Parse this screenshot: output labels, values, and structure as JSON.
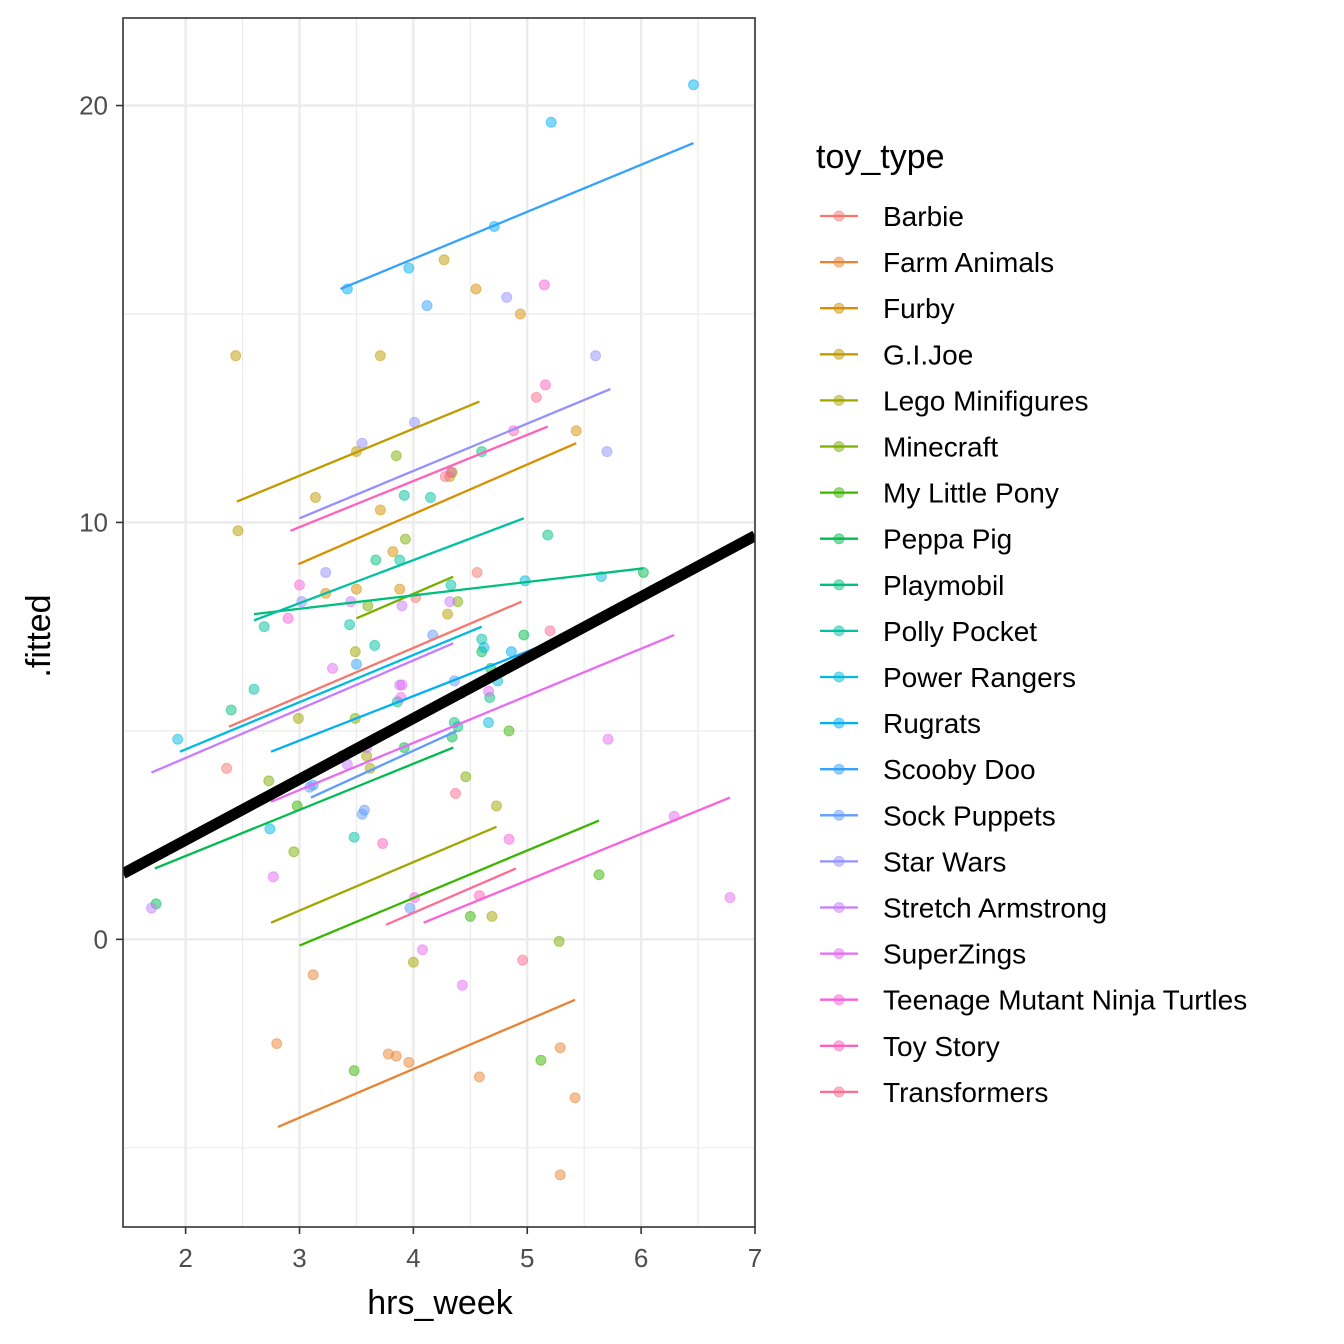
{
  "chart_data": {
    "type": "scatter",
    "xlabel": "hrs_week",
    "ylabel": ".fitted",
    "xlim": [
      1.45,
      7.0
    ],
    "ylim": [
      -6.9,
      22.1
    ],
    "x_ticks": [
      2,
      3,
      4,
      5,
      6,
      7
    ],
    "y_ticks": [
      0,
      10,
      20
    ],
    "grid": true,
    "legend": {
      "title": "toy_type",
      "position": "right"
    },
    "overall_fit": {
      "color": "#000000",
      "intercept": -0.54,
      "slope": 1.46
    },
    "series": [
      {
        "name": "Barbie",
        "color": "#F8766D",
        "line": [
          [
            2.38,
            5.1
          ],
          [
            4.95,
            8.1
          ]
        ],
        "points": [
          [
            2.36,
            4.1
          ],
          [
            3.37,
            4.4
          ],
          [
            4.02,
            8.2
          ],
          [
            4.56,
            8.8
          ]
        ]
      },
      {
        "name": "Farm Animals",
        "color": "#EA8331",
        "line": [
          [
            2.81,
            -4.5
          ],
          [
            5.42,
            -1.45
          ]
        ],
        "points": [
          [
            2.8,
            -2.5
          ],
          [
            3.12,
            -0.85
          ],
          [
            3.78,
            -2.75
          ],
          [
            3.85,
            -2.8
          ],
          [
            3.96,
            -2.95
          ],
          [
            4.58,
            -3.3
          ],
          [
            5.29,
            -2.6
          ],
          [
            5.29,
            -5.65
          ],
          [
            5.42,
            -3.8
          ]
        ]
      },
      {
        "name": "Furby",
        "color": "#D89000",
        "line": [
          [
            2.99,
            9.0
          ],
          [
            5.43,
            11.9
          ]
        ],
        "points": [
          [
            3.23,
            8.3
          ],
          [
            3.5,
            8.4
          ],
          [
            3.71,
            10.3
          ],
          [
            3.82,
            9.3
          ],
          [
            3.88,
            8.4
          ],
          [
            4.55,
            15.6
          ],
          [
            4.94,
            15.0
          ],
          [
            5.43,
            12.2
          ]
        ]
      },
      {
        "name": "G.I.Joe",
        "color": "#C09B00",
        "line": [
          [
            2.45,
            10.5
          ],
          [
            4.58,
            12.9
          ]
        ],
        "points": [
          [
            2.44,
            14.0
          ],
          [
            2.46,
            9.8
          ],
          [
            3.14,
            10.6
          ],
          [
            3.5,
            11.7
          ],
          [
            3.71,
            14.0
          ],
          [
            4.27,
            16.3
          ],
          [
            4.3,
            7.8
          ],
          [
            4.32,
            11.1
          ]
        ]
      },
      {
        "name": "Lego Minifigures",
        "color": "#A3A500",
        "line": [
          [
            2.75,
            0.4
          ],
          [
            4.73,
            2.7
          ]
        ],
        "points": [
          [
            2.99,
            5.3
          ],
          [
            3.49,
            6.9
          ],
          [
            3.59,
            4.4
          ],
          [
            3.62,
            4.1
          ],
          [
            4.0,
            -0.55
          ],
          [
            4.69,
            0.55
          ],
          [
            4.73,
            3.2
          ]
        ]
      },
      {
        "name": "Minecraft",
        "color": "#7CAE00",
        "line": [
          [
            3.5,
            7.7
          ],
          [
            4.35,
            8.7
          ]
        ],
        "points": [
          [
            2.73,
            3.8
          ],
          [
            2.95,
            2.1
          ],
          [
            3.49,
            5.3
          ],
          [
            3.6,
            8.0
          ],
          [
            3.85,
            11.6
          ],
          [
            3.93,
            9.6
          ],
          [
            4.34,
            11.2
          ],
          [
            4.39,
            8.1
          ],
          [
            4.46,
            3.9
          ],
          [
            5.28,
            -0.05
          ]
        ]
      },
      {
        "name": "My Little Pony",
        "color": "#39B600",
        "line": [
          [
            3.0,
            -0.15
          ],
          [
            5.63,
            2.85
          ]
        ],
        "points": [
          [
            2.98,
            3.2
          ],
          [
            3.48,
            -3.15
          ],
          [
            4.5,
            0.55
          ],
          [
            4.84,
            5.0
          ],
          [
            5.12,
            -2.9
          ],
          [
            5.63,
            1.55
          ]
        ]
      },
      {
        "name": "Peppa Pig",
        "color": "#00BB4E",
        "line": [
          [
            1.73,
            1.7
          ],
          [
            4.35,
            4.6
          ]
        ],
        "points": [
          [
            1.74,
            0.85
          ],
          [
            3.92,
            4.6
          ],
          [
            4.34,
            4.85
          ],
          [
            4.42,
            5.9
          ],
          [
            4.6,
            6.9
          ],
          [
            4.68,
            6.5
          ],
          [
            4.97,
            7.3
          ],
          [
            6.02,
            8.8
          ]
        ]
      },
      {
        "name": "Playmobil",
        "color": "#00BF7D",
        "line": [
          [
            2.6,
            7.8
          ],
          [
            6.02,
            8.9
          ]
        ],
        "points": [
          [
            2.4,
            5.5
          ],
          [
            3.67,
            9.1
          ],
          [
            3.86,
            5.7
          ],
          [
            4.36,
            5.2
          ],
          [
            4.39,
            5.1
          ],
          [
            4.6,
            11.7
          ],
          [
            4.67,
            5.8
          ],
          [
            5.18,
            9.7
          ]
        ]
      },
      {
        "name": "Polly Pocket",
        "color": "#00C1A3",
        "line": [
          [
            2.6,
            7.65
          ],
          [
            4.97,
            10.1
          ]
        ],
        "points": [
          [
            2.69,
            7.5
          ],
          [
            2.6,
            6.0
          ],
          [
            3.44,
            7.55
          ],
          [
            3.48,
            2.45
          ],
          [
            3.66,
            7.05
          ],
          [
            3.88,
            9.1
          ],
          [
            3.92,
            10.65
          ],
          [
            4.15,
            10.6
          ],
          [
            4.33,
            8.5
          ],
          [
            4.6,
            7.2
          ]
        ]
      },
      {
        "name": "Power Rangers",
        "color": "#00BAE0",
        "line": [
          [
            1.95,
            4.5
          ],
          [
            4.6,
            7.5
          ]
        ],
        "points": [
          [
            1.93,
            4.8
          ],
          [
            2.74,
            2.65
          ],
          [
            4.62,
            7.0
          ],
          [
            4.66,
            5.2
          ],
          [
            4.74,
            6.2
          ],
          [
            4.98,
            8.6
          ],
          [
            5.65,
            8.7
          ]
        ]
      },
      {
        "name": "Rugrats",
        "color": "#00B0F6",
        "line": [
          [
            2.75,
            4.5
          ],
          [
            5.65,
            7.6
          ]
        ],
        "points": [
          [
            3.42,
            15.6
          ],
          [
            3.96,
            16.1
          ],
          [
            4.71,
            17.1
          ],
          [
            4.86,
            6.9
          ],
          [
            5.21,
            19.6
          ],
          [
            6.46,
            20.5
          ]
        ]
      },
      {
        "name": "Scooby Doo",
        "color": "#35A2FF",
        "line": [
          [
            3.36,
            15.6
          ],
          [
            6.46,
            19.1
          ]
        ],
        "points": [
          [
            3.12,
            3.7
          ],
          [
            3.5,
            6.6
          ],
          [
            4.12,
            15.2
          ]
        ]
      },
      {
        "name": "Sock Puppets",
        "color": "#619CFF",
        "line": [
          [
            3.1,
            3.4
          ],
          [
            4.38,
            5.0
          ]
        ],
        "points": [
          [
            3.09,
            3.65
          ],
          [
            3.55,
            3.0
          ],
          [
            3.57,
            3.1
          ],
          [
            3.97,
            0.75
          ],
          [
            4.17,
            7.3
          ],
          [
            4.36,
            6.2
          ]
        ]
      },
      {
        "name": "Star Wars",
        "color": "#9590FF",
        "line": [
          [
            3.0,
            10.1
          ],
          [
            5.73,
            13.2
          ]
        ],
        "points": [
          [
            3.02,
            8.1
          ],
          [
            3.23,
            8.8
          ],
          [
            3.55,
            11.9
          ],
          [
            4.01,
            12.4
          ],
          [
            4.82,
            15.4
          ],
          [
            5.6,
            14.0
          ],
          [
            5.7,
            11.7
          ]
        ]
      },
      {
        "name": "Stretch Armstrong",
        "color": "#C77CFF",
        "line": [
          [
            1.7,
            4.0
          ],
          [
            4.35,
            7.1
          ]
        ],
        "points": [
          [
            1.7,
            0.75
          ],
          [
            3.42,
            4.2
          ],
          [
            3.45,
            8.1
          ],
          [
            3.59,
            4.6
          ],
          [
            3.88,
            6.1
          ],
          [
            3.9,
            8.0
          ],
          [
            4.32,
            8.1
          ]
        ]
      },
      {
        "name": "SuperZings",
        "color": "#E76BF3",
        "line": [
          [
            2.75,
            3.3
          ],
          [
            6.29,
            7.3
          ]
        ],
        "points": [
          [
            2.77,
            1.5
          ],
          [
            3.29,
            6.5
          ],
          [
            3.89,
            5.8
          ],
          [
            3.9,
            6.1
          ],
          [
            4.08,
            -0.25
          ],
          [
            4.43,
            -1.1
          ],
          [
            4.66,
            5.95
          ],
          [
            5.71,
            4.8
          ],
          [
            6.29,
            2.95
          ],
          [
            6.78,
            1.0
          ]
        ]
      },
      {
        "name": "Teenage Mutant Ninja Turtles",
        "color": "#FA62DB",
        "line": [
          [
            4.09,
            0.4
          ],
          [
            6.78,
            3.4
          ]
        ],
        "points": [
          [
            2.9,
            7.7
          ],
          [
            3.0,
            8.5
          ],
          [
            4.01,
            1.0
          ],
          [
            4.84,
            2.4
          ],
          [
            5.15,
            15.7
          ]
        ]
      },
      {
        "name": "Toy Story",
        "color": "#FF62BC",
        "line": [
          [
            2.92,
            9.8
          ],
          [
            5.18,
            12.3
          ]
        ],
        "points": [
          [
            3.73,
            2.3
          ],
          [
            4.33,
            11.2
          ],
          [
            4.58,
            1.05
          ],
          [
            4.88,
            12.2
          ],
          [
            5.16,
            13.3
          ]
        ]
      },
      {
        "name": "Transformers",
        "color": "#FF6C91",
        "line": [
          [
            3.76,
            0.35
          ],
          [
            4.9,
            1.7
          ]
        ],
        "points": [
          [
            4.28,
            11.1
          ],
          [
            4.37,
            3.5
          ],
          [
            4.96,
            -0.5
          ],
          [
            5.08,
            13.0
          ],
          [
            5.2,
            7.4
          ]
        ]
      }
    ]
  }
}
